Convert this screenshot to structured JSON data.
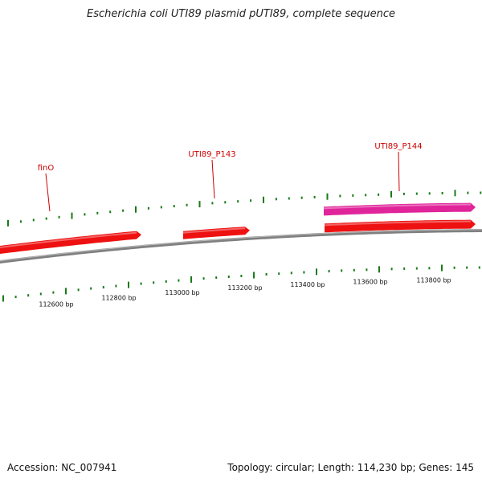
{
  "title": "Escherichia coli UTI89 plasmid pUTI89, complete sequence",
  "footer": {
    "accession": "Accession: NC_007941",
    "summary": "Topology: circular; Length: 114,230 bp; Genes: 145"
  },
  "colors": {
    "backbone": "#808080",
    "gene_red": "#ee1111",
    "gene_magenta": "#e0249a",
    "tick_green": "#1a7a1a",
    "label_red": "#cc0000"
  },
  "scale_labels": [
    "112600 bp",
    "112800 bp",
    "113000 bp",
    "113200 bp",
    "113400 bp",
    "113600 bp",
    "113800 bp"
  ],
  "genes": [
    {
      "label": "finO",
      "color": "red"
    },
    {
      "label": "UTI89_P143",
      "color": "red"
    },
    {
      "label": "UTI89_P144",
      "color": "red"
    },
    {
      "label": "",
      "color": "magenta"
    }
  ]
}
